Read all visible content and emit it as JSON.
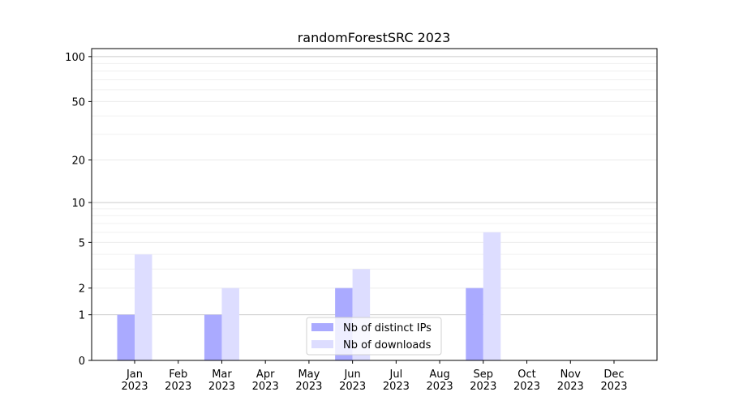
{
  "chart_data": {
    "type": "bar",
    "title": "randomForestSRC 2023",
    "xlabel": "",
    "ylabel": "",
    "y_scale": "log(1+y)",
    "ylim": [
      0,
      113
    ],
    "yticks": [
      0,
      1,
      2,
      5,
      10,
      20,
      50,
      100
    ],
    "grid": true,
    "legend_placement": "bottom-center",
    "categories": [
      "Jan\n2023",
      "Feb\n2023",
      "Mar\n2023",
      "Apr\n2023",
      "May\n2023",
      "Jun\n2023",
      "Jul\n2023",
      "Aug\n2023",
      "Sep\n2023",
      "Oct\n2023",
      "Nov\n2023",
      "Dec\n2023"
    ],
    "series": [
      {
        "name": "Nb of distinct IPs",
        "color": "#aaaaff",
        "values": [
          1,
          0,
          1,
          0,
          0,
          2,
          0,
          0,
          2,
          0,
          0,
          0
        ]
      },
      {
        "name": "Nb of downloads",
        "color": "#ddddff",
        "values": [
          4,
          0,
          2,
          0,
          0,
          3,
          0,
          0,
          6,
          0,
          0,
          0
        ]
      }
    ]
  }
}
